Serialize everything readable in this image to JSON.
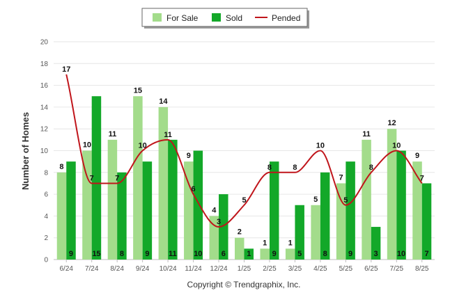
{
  "chart_data": {
    "type": "bar",
    "ylabel": "Number of Homes",
    "ylim": [
      0,
      20
    ],
    "yticks": [
      0,
      2,
      4,
      6,
      8,
      10,
      12,
      14,
      16,
      18,
      20
    ],
    "legend_position": "top-center",
    "grid": true,
    "categories": [
      "6/24",
      "7/24",
      "8/24",
      "9/24",
      "10/24",
      "11/24",
      "12/24",
      "1/25",
      "2/25",
      "3/25",
      "4/25",
      "5/25",
      "6/25",
      "7/25",
      "8/25"
    ],
    "series": [
      {
        "name": "For Sale",
        "type": "bar",
        "color": "#a3dc8b",
        "values": [
          8,
          10,
          11,
          15,
          14,
          9,
          4,
          2,
          1,
          1,
          5,
          7,
          11,
          12,
          9
        ]
      },
      {
        "name": "Sold",
        "type": "bar",
        "color": "#13a829",
        "values": [
          9,
          15,
          8,
          9,
          11,
          10,
          6,
          1,
          9,
          5,
          8,
          9,
          3,
          10,
          7
        ]
      },
      {
        "name": "Pended",
        "type": "line",
        "color": "#c0151b",
        "values": [
          17,
          7,
          7,
          10,
          11,
          6,
          3,
          5,
          8,
          8,
          10,
          5,
          8,
          10,
          7
        ]
      }
    ]
  },
  "footer": {
    "copyright": "Copyright © Trendgraphix, Inc."
  }
}
